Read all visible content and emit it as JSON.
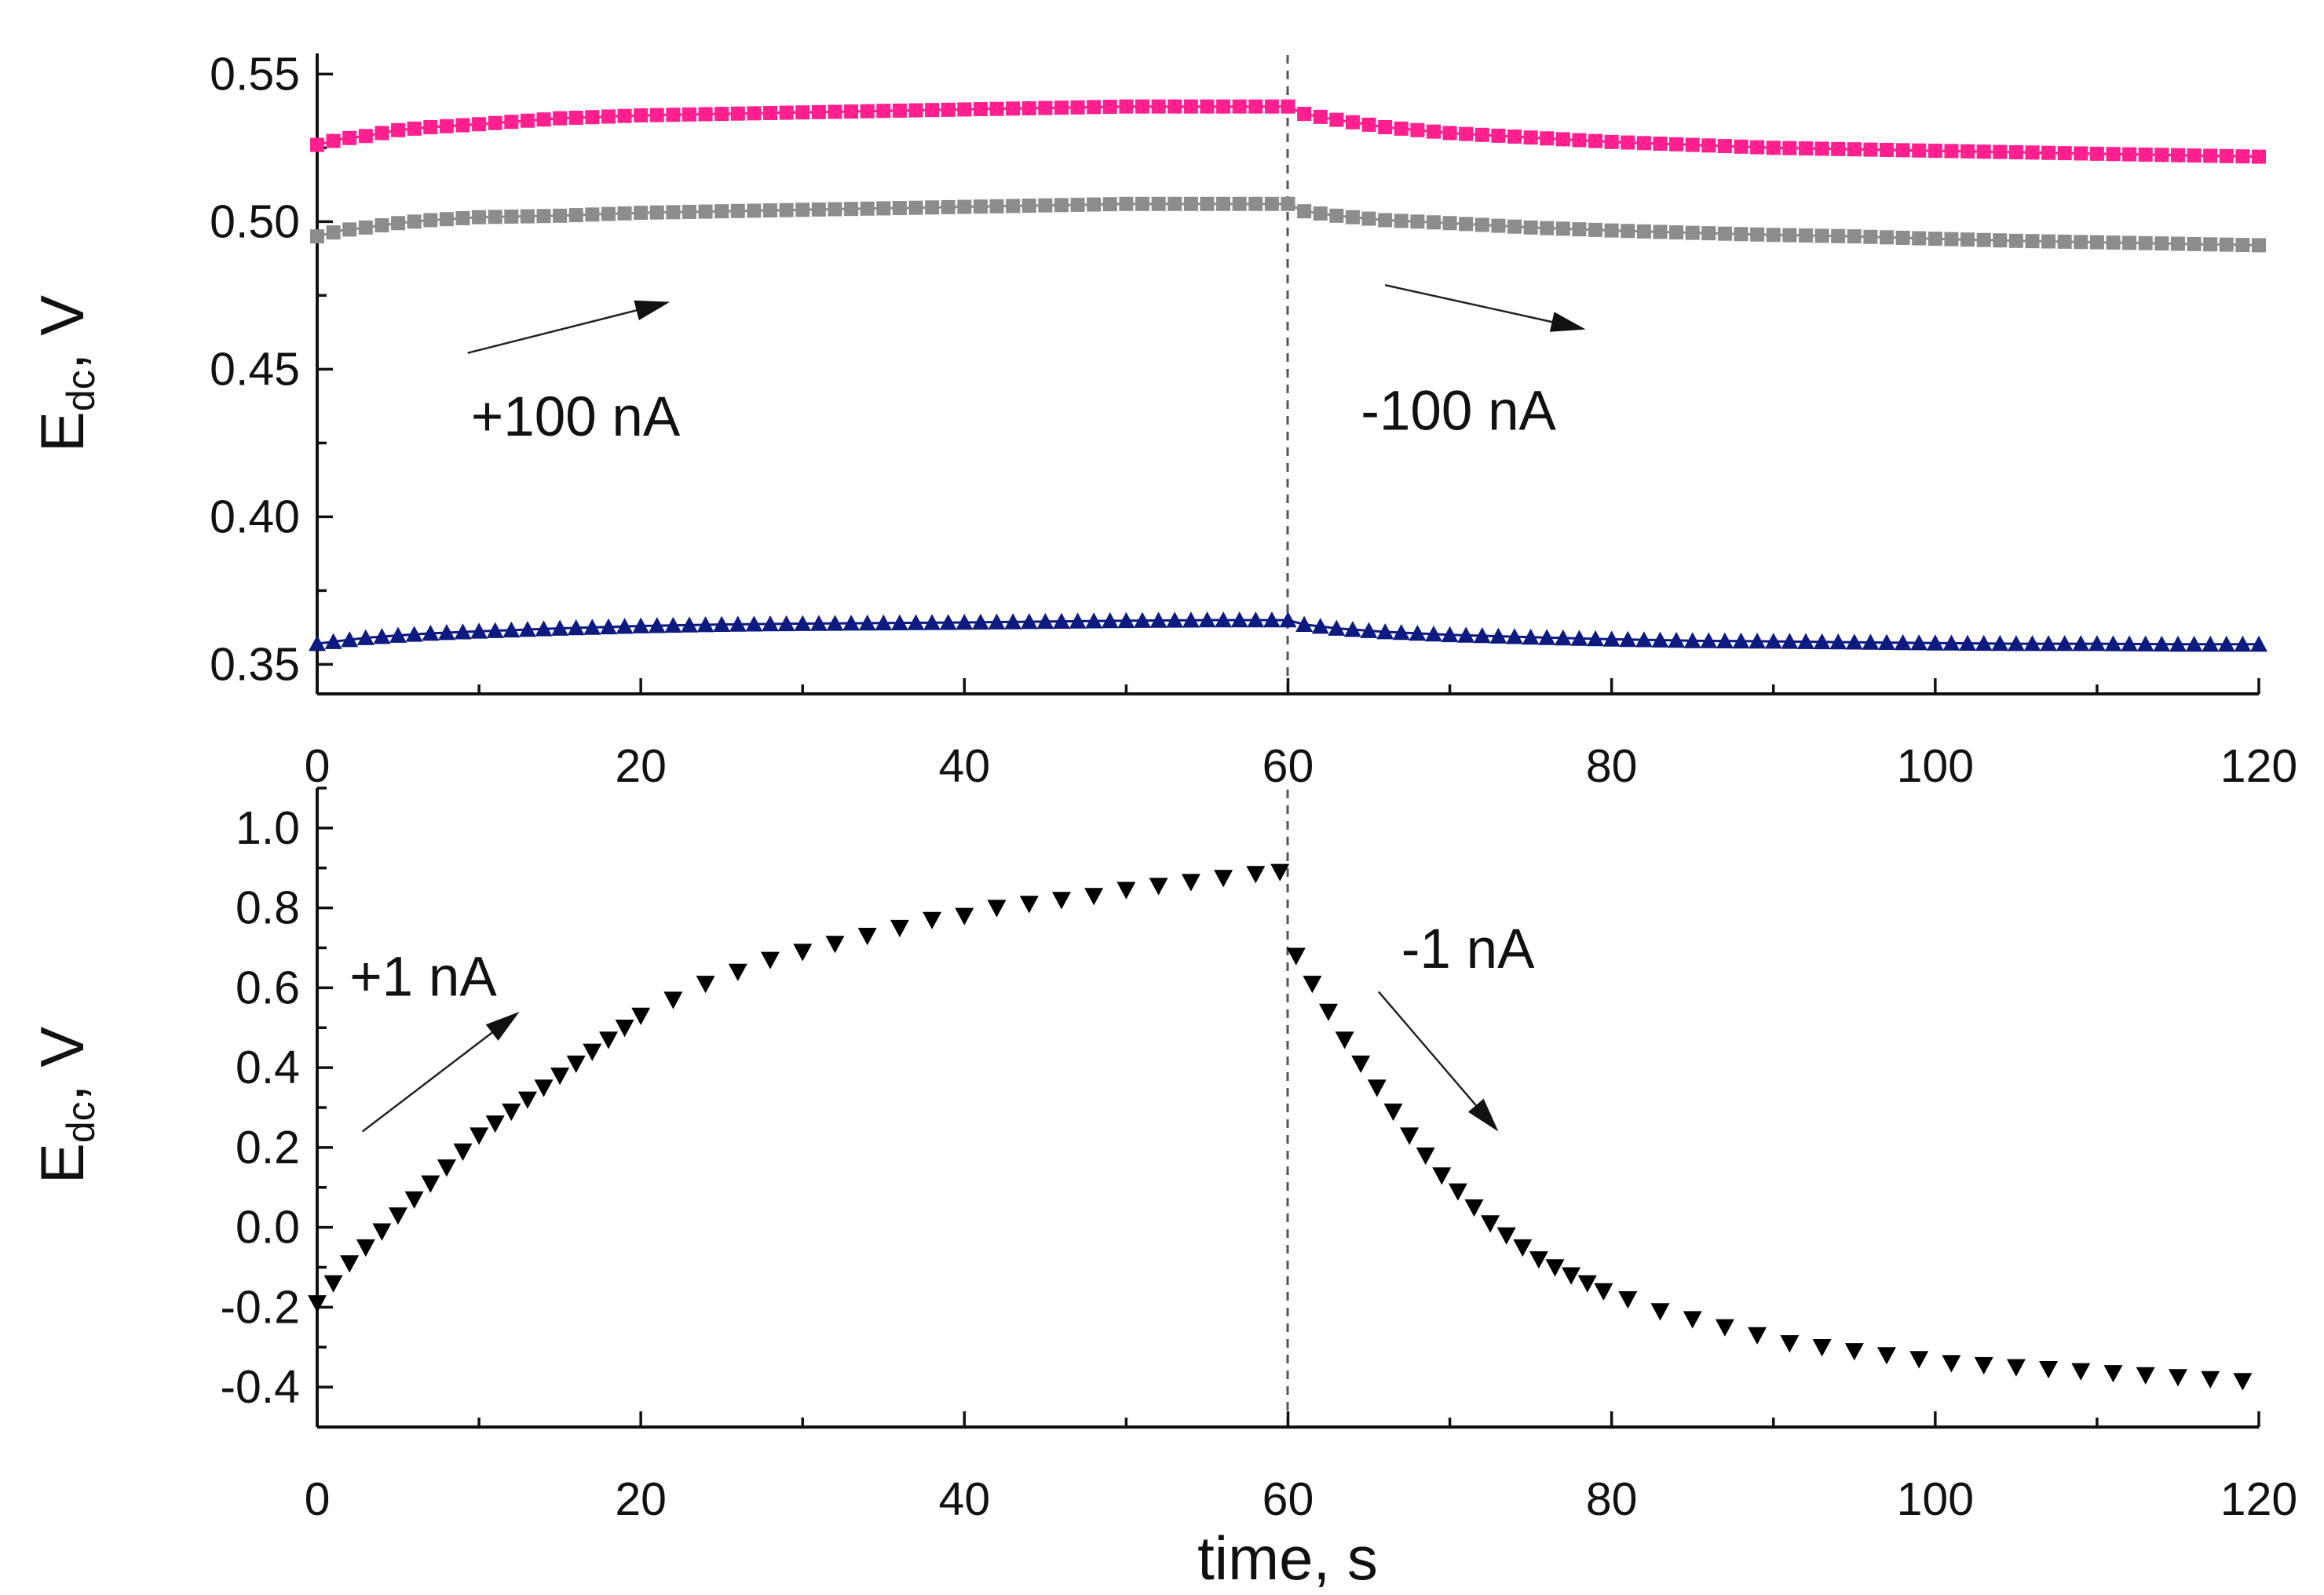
{
  "chart_data": [
    {
      "type": "scatter",
      "panel": "top",
      "ylabel_main": "E",
      "ylabel_sub": "dc",
      "ylabel_tail": ", V",
      "xlim": [
        0,
        120
      ],
      "ylim": [
        0.34,
        0.557
      ],
      "xticks": [
        "0",
        "20",
        "40",
        "60",
        "80",
        "100",
        "120"
      ],
      "yticks": [
        "0.35",
        "0.40",
        "0.45",
        "0.50",
        "0.55"
      ],
      "grid": false,
      "divider_x": 60,
      "series": [
        {
          "marker": "square",
          "color": "#ff1f8e",
          "x": [
            0,
            1.5,
            3,
            5,
            7,
            10,
            15,
            20,
            25,
            30,
            35,
            40,
            45,
            50,
            55,
            60,
            61,
            63,
            66,
            70,
            75,
            80,
            85,
            90,
            95,
            100,
            105,
            110,
            115,
            120
          ],
          "y": [
            0.526,
            0.528,
            0.529,
            0.531,
            0.532,
            0.533,
            0.535,
            0.536,
            0.5365,
            0.537,
            0.5375,
            0.538,
            0.5385,
            0.539,
            0.539,
            0.539,
            0.5365,
            0.5345,
            0.532,
            0.53,
            0.5285,
            0.527,
            0.526,
            0.525,
            0.5245,
            0.524,
            0.5235,
            0.523,
            0.5225,
            0.522
          ]
        },
        {
          "marker": "square",
          "color": "#8c8c8c",
          "x": [
            0,
            1.5,
            3,
            5,
            7,
            10,
            15,
            20,
            25,
            30,
            35,
            40,
            45,
            50,
            55,
            60,
            61,
            63,
            66,
            70,
            75,
            80,
            85,
            90,
            95,
            100,
            105,
            110,
            115,
            120
          ],
          "y": [
            0.495,
            0.497,
            0.498,
            0.4995,
            0.5005,
            0.5015,
            0.502,
            0.503,
            0.5035,
            0.504,
            0.5045,
            0.505,
            0.5055,
            0.506,
            0.506,
            0.506,
            0.5035,
            0.502,
            0.5005,
            0.4995,
            0.498,
            0.497,
            0.4962,
            0.4955,
            0.495,
            0.4942,
            0.4935,
            0.493,
            0.4925,
            0.492
          ]
        },
        {
          "marker": "triangle-up",
          "color": "#0d1a80",
          "x": [
            0,
            1.5,
            3,
            5,
            7,
            10,
            15,
            20,
            25,
            30,
            35,
            40,
            45,
            50,
            55,
            60,
            61,
            63,
            66,
            70,
            75,
            80,
            85,
            90,
            95,
            100,
            105,
            110,
            115,
            120
          ],
          "y": [
            0.357,
            0.358,
            0.359,
            0.3598,
            0.3605,
            0.3612,
            0.3622,
            0.363,
            0.3635,
            0.3638,
            0.364,
            0.3642,
            0.3645,
            0.3648,
            0.365,
            0.365,
            0.3635,
            0.3622,
            0.361,
            0.36,
            0.3592,
            0.3585,
            0.358,
            0.3578,
            0.3575,
            0.3572,
            0.357,
            0.357,
            0.3568,
            0.3568
          ]
        }
      ],
      "annotations": [
        {
          "text": "+100 nA",
          "x": 9.5,
          "y": 0.4275,
          "arrow_from": [
            9.3,
            0.4555
          ],
          "arrow_to": [
            21.8,
            0.4728
          ]
        },
        {
          "text": "-100 nA",
          "x": 64.5,
          "y": 0.4295,
          "arrow_from": [
            66,
            0.4785
          ],
          "arrow_to": [
            78.4,
            0.4635
          ]
        }
      ]
    },
    {
      "type": "scatter",
      "panel": "bottom",
      "ylabel_main": "E",
      "ylabel_sub": "dc",
      "ylabel_tail": ", V",
      "xlabel": "time, s",
      "xlim": [
        0,
        120
      ],
      "ylim": [
        -0.5,
        1.1
      ],
      "xticks": [
        "0",
        "20",
        "40",
        "60",
        "80",
        "100",
        "120"
      ],
      "yticks": [
        "-0.4",
        "-0.2",
        "0.0",
        "0.2",
        "0.4",
        "0.6",
        "0.8",
        "1.0"
      ],
      "grid": false,
      "divider_x": 60,
      "series": [
        {
          "marker": "triangle-down",
          "color": "#000000",
          "x": [
            0,
            1,
            2,
            3,
            4,
            5,
            6,
            7,
            8,
            9,
            10,
            11,
            12,
            13,
            14,
            15,
            16,
            17,
            18,
            19,
            20,
            22,
            24,
            26,
            28,
            30,
            32,
            34,
            36,
            38,
            40,
            42,
            44,
            46,
            48,
            50,
            52,
            54,
            56,
            58,
            59.5,
            60.5,
            61.5,
            62.5,
            63.5,
            64.5,
            65.5,
            66.5,
            67.5,
            68.5,
            69.5,
            70.5,
            71.5,
            72.5,
            73.5,
            74.5,
            75.5,
            76.5,
            77.5,
            78.5,
            79.5,
            81,
            83,
            85,
            87,
            89,
            91,
            93,
            95,
            97,
            99,
            101,
            103,
            105,
            107,
            109,
            111,
            113,
            115,
            117,
            119
          ],
          "y": [
            -0.19,
            -0.14,
            -0.09,
            -0.05,
            -0.01,
            0.03,
            0.07,
            0.11,
            0.15,
            0.19,
            0.23,
            0.26,
            0.29,
            0.32,
            0.35,
            0.38,
            0.41,
            0.44,
            0.47,
            0.5,
            0.53,
            0.57,
            0.61,
            0.64,
            0.67,
            0.69,
            0.71,
            0.73,
            0.75,
            0.77,
            0.78,
            0.8,
            0.81,
            0.82,
            0.83,
            0.845,
            0.855,
            0.865,
            0.875,
            0.885,
            0.89,
            0.68,
            0.61,
            0.54,
            0.47,
            0.41,
            0.35,
            0.29,
            0.23,
            0.18,
            0.13,
            0.09,
            0.05,
            0.01,
            -0.02,
            -0.05,
            -0.08,
            -0.1,
            -0.12,
            -0.14,
            -0.16,
            -0.18,
            -0.21,
            -0.23,
            -0.25,
            -0.27,
            -0.29,
            -0.3,
            -0.31,
            -0.32,
            -0.33,
            -0.34,
            -0.345,
            -0.35,
            -0.355,
            -0.36,
            -0.365,
            -0.37,
            -0.375,
            -0.38,
            -0.385
          ]
        }
      ],
      "annotations": [
        {
          "text": "+1 nA",
          "x": 2,
          "y": 0.58,
          "arrow_from": [
            2.8,
            0.24
          ],
          "arrow_to": [
            12.5,
            0.54
          ]
        },
        {
          "text": "-1 nA",
          "x": 67,
          "y": 0.65,
          "arrow_from": [
            65.6,
            0.59
          ],
          "arrow_to": [
            73,
            0.24
          ]
        }
      ]
    }
  ]
}
